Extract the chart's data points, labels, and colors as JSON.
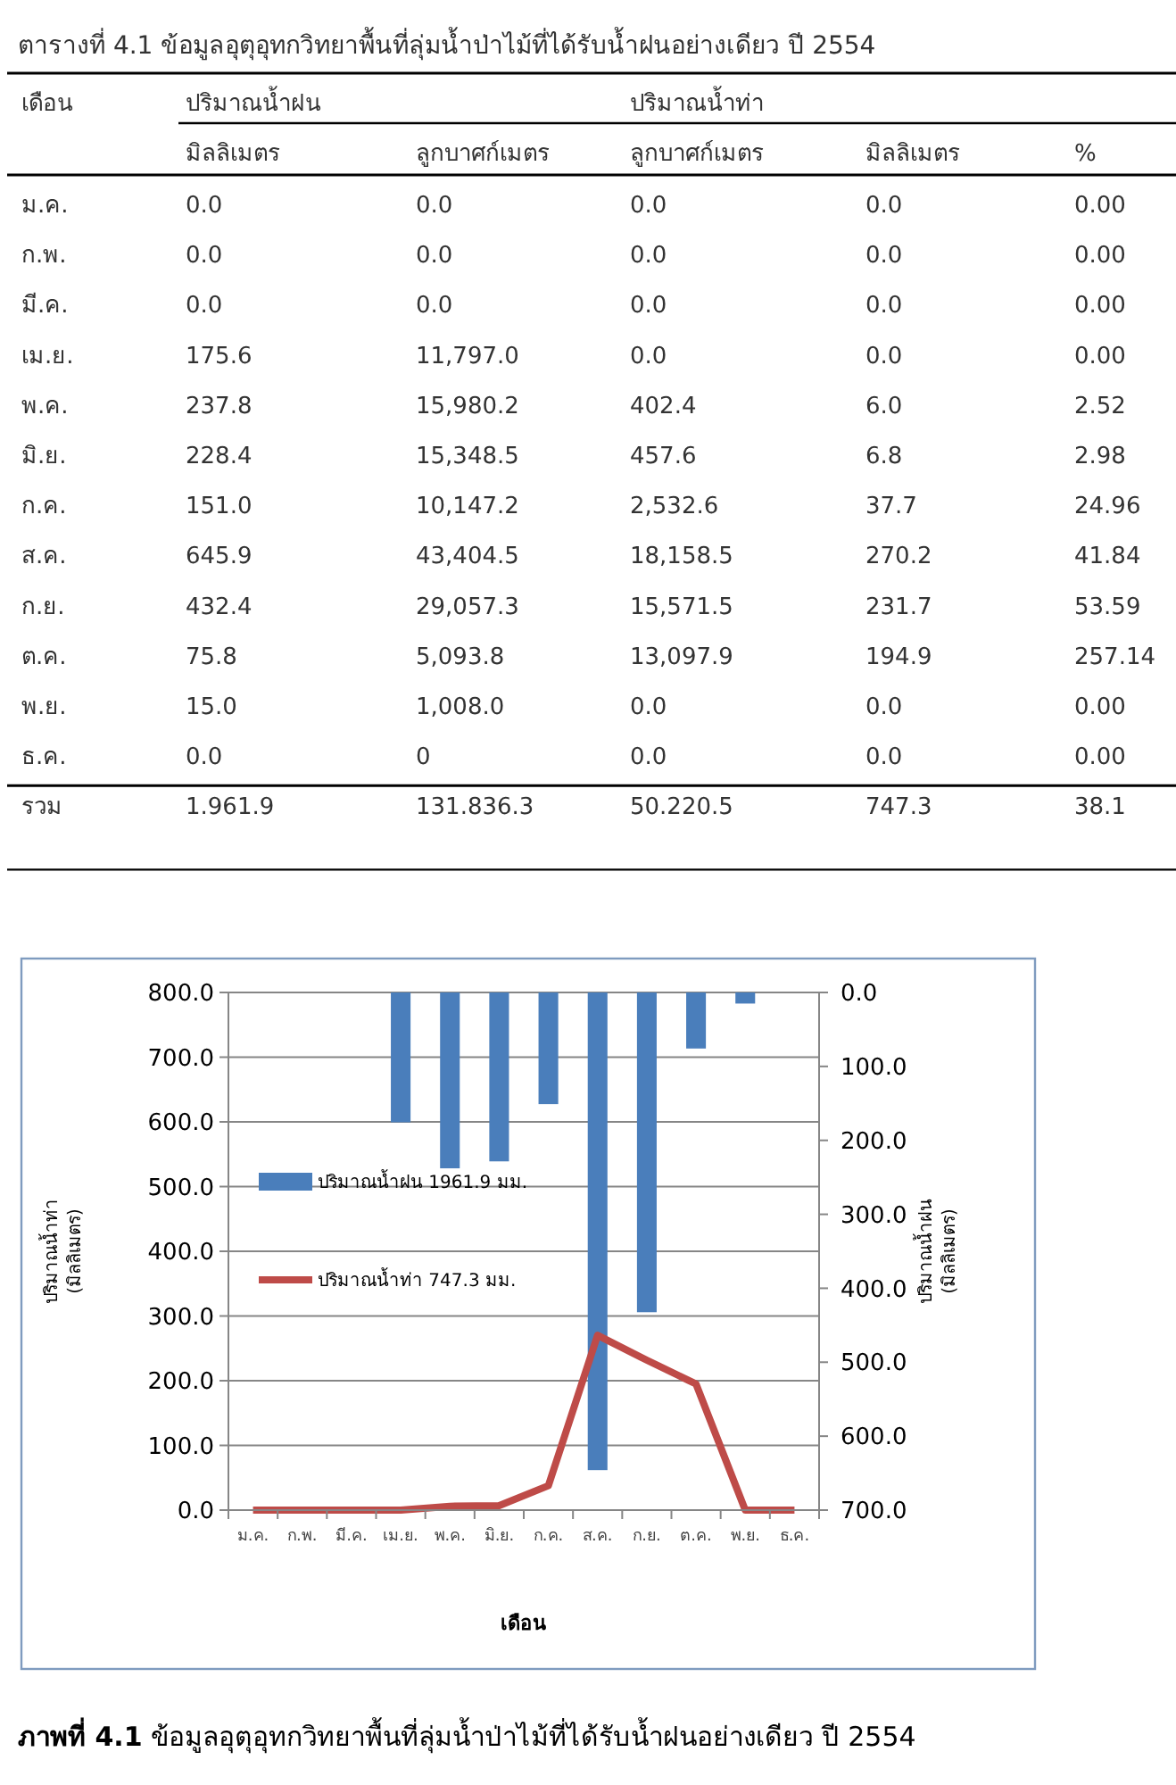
{
  "chart_data": [
    {
      "type": "other",
      "title": "ตารางที่ 4.1 ข้อมูลอุตุอุทกวิทยาพื้นที่ลุ่มน้ำป่าไม้ที่ได้รับน้ำฝนอย่างเดียว  ปี 2554",
      "annotations": [
        "เดือน",
        "ปริมาณน้ำฝน",
        "ปริมาณน้ำท่า"
      ],
      "categories": [
        "มิลลิเมตร",
        "ลูกบาศก์เมตร",
        "ลูกบาศก์เมตร",
        "มิลลิเมตร",
        "%"
      ],
      "y_categories": [
        "ม.ค.",
        "ก.พ.",
        "มี.ค.",
        "เม.ย.",
        "พ.ค.",
        "มิ.ย.",
        "ก.ค.",
        "ส.ค.",
        "ก.ย.",
        "ต.ค.",
        "พ.ย.",
        "ธ.ค.",
        "รวม"
      ],
      "cell_labels": [
        [
          "0.0",
          "0.0",
          "0.0",
          "0.0",
          "0.00"
        ],
        [
          "0.0",
          "0.0",
          "0.0",
          "0.0",
          "0.00"
        ],
        [
          "0.0",
          "0.0",
          "0.0",
          "0.0",
          "0.00"
        ],
        [
          "175.6",
          "11,797.0",
          "0.0",
          "0.0",
          "0.00"
        ],
        [
          "237.8",
          "15,980.2",
          "402.4",
          "6.0",
          "2.52"
        ],
        [
          "228.4",
          "15,348.5",
          "457.6",
          "6.8",
          "2.98"
        ],
        [
          "151.0",
          "10,147.2",
          "2,532.6",
          "37.7",
          "24.96"
        ],
        [
          "645.9",
          "43,404.5",
          "18,158.5",
          "270.2",
          "41.84"
        ],
        [
          "432.4",
          "29,057.3",
          "15,571.5",
          "231.7",
          "53.59"
        ],
        [
          "75.8",
          "5,093.8",
          "13,097.9",
          "194.9",
          "257.14"
        ],
        [
          "15.0",
          "1,008.0",
          "0.0",
          "0.0",
          "0.00"
        ],
        [
          "0.0",
          "0",
          "0.0",
          "0.0",
          "0.00"
        ],
        [
          "1.961.9",
          "131.836.3",
          "50.220.5",
          "747.3",
          "38.1"
        ]
      ]
    },
    {
      "type": "bar",
      "xlabel": "เดือน",
      "ylabel": "ปริมาณน้ำท่า (มิลลิเมตร)",
      "y2label": "ปริมาณน้ำฝน (มิลลิเมตร)",
      "grid": "y",
      "legend": "left",
      "annotations": [
        "ภาพที่ 4.1 ข้อมูลอุตุอุทกวิทยาพื้นที่ลุ่มน้ำป่าไม้ที่ได้รับน้ำฝนอย่างเดียว  ปี 2554"
      ],
      "categories": [
        "ม.ค.",
        "ก.พ.",
        "มี.ค.",
        "เม.ย.",
        "พ.ค.",
        "มิ.ย.",
        "ก.ค.",
        "ส.ค.",
        "ก.ย.",
        "ต.ค.",
        "พ.ย.",
        "ธ.ค."
      ],
      "ylim": [
        0,
        800
      ],
      "yticks": [
        {
          "value": 0,
          "label": "0.0"
        },
        {
          "value": 100,
          "label": "100.0"
        },
        {
          "value": 200,
          "label": "200.0"
        },
        {
          "value": 300,
          "label": "300.0"
        },
        {
          "value": 400,
          "label": "400.0"
        },
        {
          "value": 500,
          "label": "500.0"
        },
        {
          "value": 600,
          "label": "600.0"
        },
        {
          "value": 700,
          "label": "700.0"
        },
        {
          "value": 800,
          "label": "800.0"
        }
      ],
      "y2lim": [
        700,
        0
      ],
      "y2ticks": [
        {
          "value": 0,
          "label": "0.0"
        },
        {
          "value": 100,
          "label": "100.0"
        },
        {
          "value": 200,
          "label": "200.0"
        },
        {
          "value": 300,
          "label": "300.0"
        },
        {
          "value": 400,
          "label": "400.0"
        },
        {
          "value": 500,
          "label": "500.0"
        },
        {
          "value": 600,
          "label": "600.0"
        },
        {
          "value": 700,
          "label": "700.0"
        }
      ],
      "series": [
        {
          "name": "ปริมาณน้ำฝน 1961.9 มม.",
          "type": "bar",
          "axis": "y2",
          "color": "#4a7ebb",
          "values": [
            0.0,
            0.0,
            0.0,
            175.6,
            237.8,
            228.4,
            151.0,
            645.9,
            432.4,
            75.8,
            15.0,
            0.0
          ]
        },
        {
          "name": "ปริมาณน้ำท่า 747.3 มม.",
          "type": "line",
          "axis": "y",
          "color": "#be4b48",
          "values": [
            0.0,
            0.0,
            0.0,
            0.0,
            6.0,
            6.8,
            37.7,
            270.2,
            231.7,
            194.9,
            0.0,
            0.0
          ]
        }
      ]
    }
  ]
}
